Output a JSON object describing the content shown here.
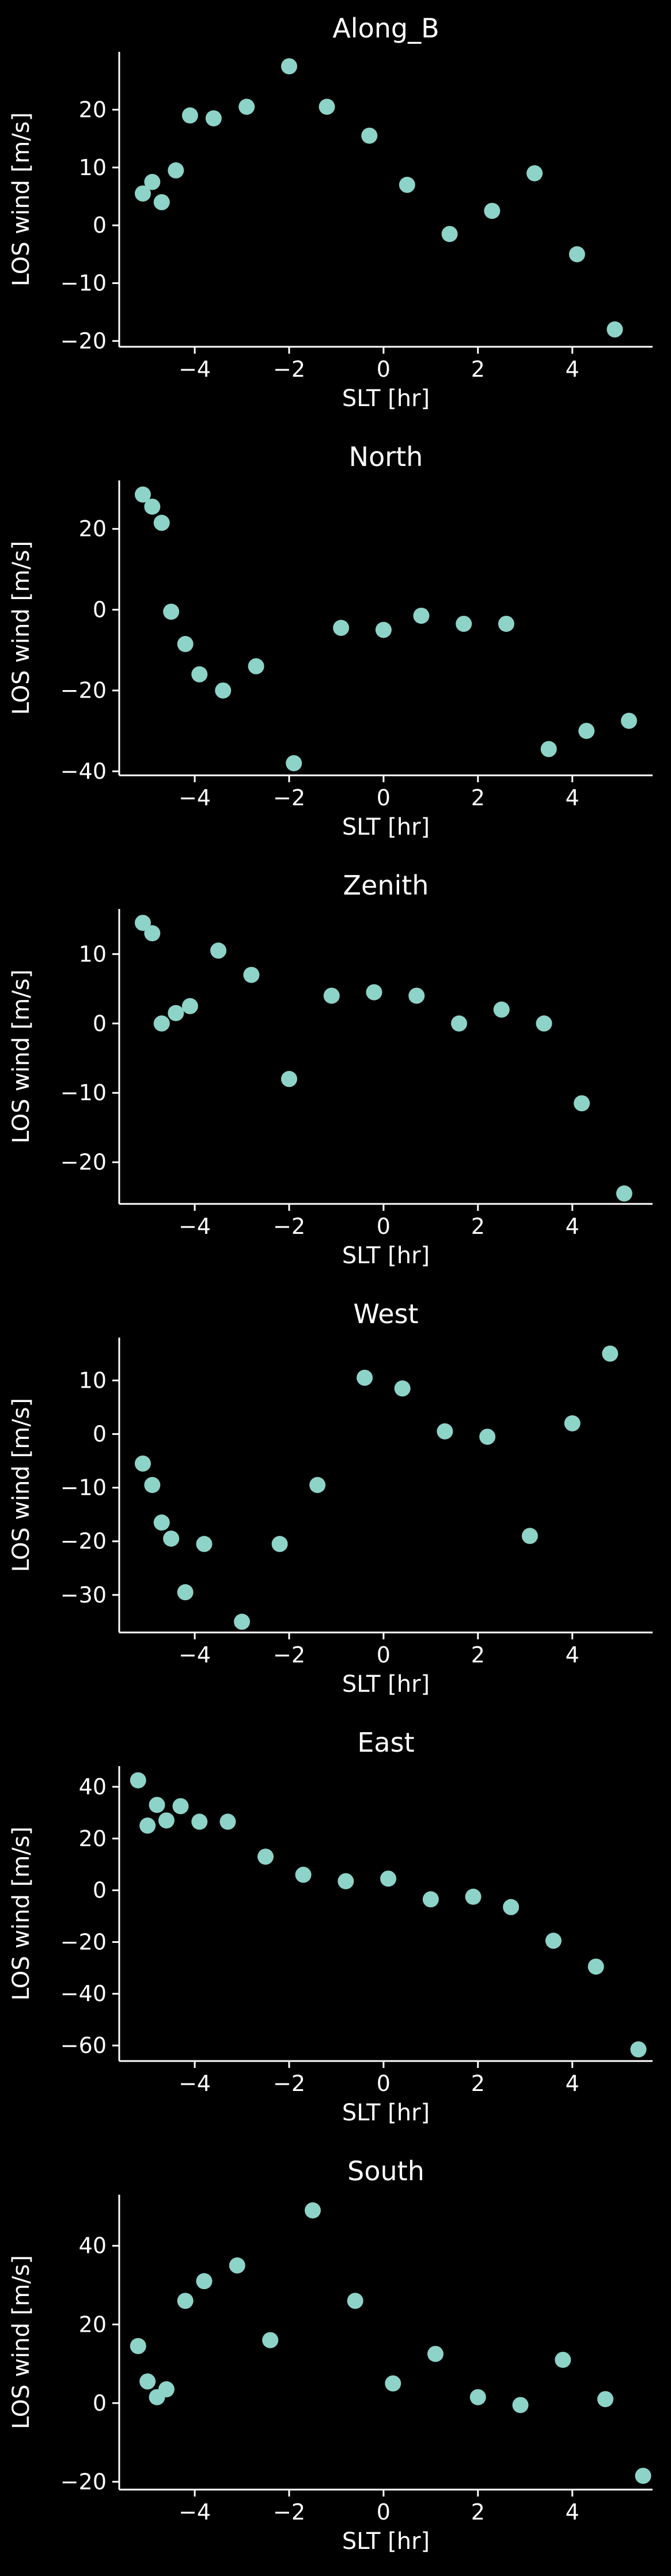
{
  "figure": {
    "background": "#000000",
    "foreground": "#ffffff",
    "marker_color": "#8dd3c7"
  },
  "chart_data": [
    {
      "type": "scatter",
      "title": "Along_B",
      "xlabel": "SLT [hr]",
      "ylabel": "LOS wind [m/s]",
      "xlim": [
        -5.6,
        5.7
      ],
      "ylim": [
        -21,
        30
      ],
      "xticks": [
        -4,
        -2,
        0,
        2,
        4
      ],
      "yticks": [
        -20,
        -10,
        0,
        10,
        20
      ],
      "grid": false,
      "x": [
        -5.1,
        -4.9,
        -4.7,
        -4.4,
        -4.1,
        -3.6,
        -2.9,
        -2.0,
        -1.2,
        -0.3,
        0.5,
        1.4,
        2.3,
        3.2,
        4.1,
        4.9
      ],
      "y": [
        5.5,
        7.5,
        4.0,
        9.5,
        19.0,
        18.5,
        20.5,
        27.5,
        20.5,
        15.5,
        7.0,
        -1.5,
        2.5,
        9.0,
        -5.0,
        -18.0
      ]
    },
    {
      "type": "scatter",
      "title": "North",
      "xlabel": "SLT [hr]",
      "ylabel": "LOS wind [m/s]",
      "xlim": [
        -5.6,
        5.7
      ],
      "ylim": [
        -41,
        32
      ],
      "xticks": [
        -4,
        -2,
        0,
        2,
        4
      ],
      "yticks": [
        -40,
        -20,
        0,
        20
      ],
      "grid": false,
      "x": [
        -5.1,
        -4.9,
        -4.7,
        -4.5,
        -4.2,
        -3.9,
        -3.4,
        -2.7,
        -1.9,
        -0.9,
        0.0,
        0.8,
        1.7,
        2.6,
        3.5,
        4.3,
        5.2
      ],
      "y": [
        28.5,
        25.5,
        21.5,
        -0.5,
        -8.5,
        -16.0,
        -20.0,
        -14.0,
        -38.0,
        -4.5,
        -5.0,
        -1.5,
        -3.5,
        -3.5,
        -34.5,
        -30.0,
        -27.5
      ]
    },
    {
      "type": "scatter",
      "title": "Zenith",
      "xlabel": "SLT [hr]",
      "ylabel": "LOS wind [m/s]",
      "xlim": [
        -5.6,
        5.7
      ],
      "ylim": [
        -26,
        16.5
      ],
      "xticks": [
        -4,
        -2,
        0,
        2,
        4
      ],
      "yticks": [
        -20,
        -10,
        0,
        10
      ],
      "grid": false,
      "x": [
        -5.1,
        -4.9,
        -4.7,
        -4.4,
        -4.1,
        -3.5,
        -2.8,
        -2.0,
        -1.1,
        -0.2,
        0.7,
        1.6,
        2.5,
        3.4,
        4.2,
        5.1
      ],
      "y": [
        14.5,
        13.0,
        0.0,
        1.5,
        2.5,
        10.5,
        7.0,
        -8.0,
        4.0,
        4.5,
        4.0,
        0.0,
        2.0,
        0.0,
        -11.5,
        -24.5
      ]
    },
    {
      "type": "scatter",
      "title": "West",
      "xlabel": "SLT [hr]",
      "ylabel": "LOS wind [m/s]",
      "xlim": [
        -5.6,
        5.7
      ],
      "ylim": [
        -37,
        18
      ],
      "xticks": [
        -4,
        -2,
        0,
        2,
        4
      ],
      "yticks": [
        -30,
        -20,
        -10,
        0,
        10
      ],
      "grid": false,
      "x": [
        -5.1,
        -4.9,
        -4.7,
        -4.5,
        -4.2,
        -3.8,
        -3.0,
        -2.2,
        -1.4,
        -0.4,
        0.4,
        1.3,
        2.2,
        3.1,
        4.0,
        4.8
      ],
      "y": [
        -5.5,
        -9.5,
        -16.5,
        -19.5,
        -29.5,
        -20.5,
        -35.0,
        -20.5,
        -9.5,
        10.5,
        8.5,
        0.5,
        -0.5,
        -19.0,
        2.0,
        15.0
      ]
    },
    {
      "type": "scatter",
      "title": "East",
      "xlabel": "SLT [hr]",
      "ylabel": "LOS wind [m/s]",
      "xlim": [
        -5.6,
        5.7
      ],
      "ylim": [
        -66,
        48
      ],
      "xticks": [
        -4,
        -2,
        0,
        2,
        4
      ],
      "yticks": [
        -60,
        -40,
        -20,
        0,
        20,
        40
      ],
      "grid": false,
      "x": [
        -5.2,
        -5.0,
        -4.8,
        -4.6,
        -4.3,
        -3.9,
        -3.3,
        -2.5,
        -1.7,
        -0.8,
        0.1,
        1.0,
        1.9,
        2.7,
        3.6,
        4.5,
        5.4
      ],
      "y": [
        42.5,
        25.0,
        33.0,
        27.0,
        32.5,
        26.5,
        26.5,
        13.0,
        6.0,
        3.5,
        4.5,
        -3.5,
        -2.5,
        -6.5,
        -19.5,
        -29.5,
        -61.5
      ]
    },
    {
      "type": "scatter",
      "title": "South",
      "xlabel": "SLT [hr]",
      "ylabel": "LOS wind [m/s]",
      "xlim": [
        -5.6,
        5.7
      ],
      "ylim": [
        -22,
        53
      ],
      "xticks": [
        -4,
        -2,
        0,
        2,
        4
      ],
      "yticks": [
        -20,
        0,
        20,
        40
      ],
      "grid": false,
      "x": [
        -5.2,
        -5.0,
        -4.8,
        -4.6,
        -4.2,
        -3.8,
        -3.1,
        -2.4,
        -1.5,
        -0.6,
        0.2,
        1.1,
        2.0,
        2.9,
        3.8,
        4.7,
        5.5
      ],
      "y": [
        14.5,
        5.5,
        1.5,
        3.5,
        26.0,
        31.0,
        35.0,
        16.0,
        49.0,
        26.0,
        5.0,
        12.5,
        1.5,
        -0.5,
        11.0,
        1.0,
        -18.5
      ]
    }
  ]
}
